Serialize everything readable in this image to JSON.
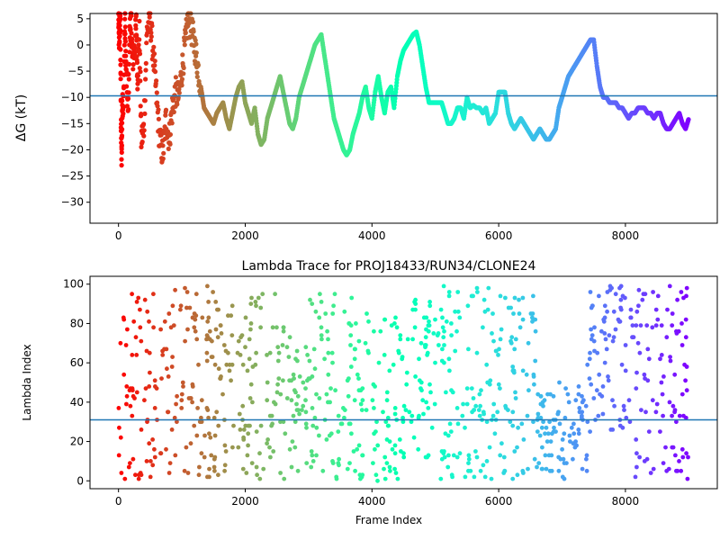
{
  "chart_data": [
    {
      "type": "scatter",
      "title": "",
      "xlabel": "",
      "ylabel": "ΔG (kT)",
      "xlim": [
        -450,
        9450
      ],
      "ylim": [
        -34,
        6
      ],
      "xticks": [
        0,
        2000,
        4000,
        6000,
        8000
      ],
      "xtick_labels": [
        "0",
        "2000",
        "4000",
        "6000",
        "8000"
      ],
      "yticks": [
        5,
        0,
        -5,
        -10,
        -15,
        -20,
        -25,
        -30
      ],
      "ytick_labels": [
        "5",
        "0",
        "−5",
        "−10",
        "−15",
        "−20",
        "−25",
        "−30"
      ],
      "hline": -9.7,
      "hline_color": "#1f77b4",
      "grid": false,
      "legend": "none",
      "colormap": "rainbow (red at frame 0 → violet at frame 9000)",
      "series": [
        {
          "points": [
            [
              0,
              5
            ],
            [
              10,
              0
            ],
            [
              20,
              4
            ],
            [
              30,
              3
            ],
            [
              40,
              -16
            ],
            [
              50,
              -21
            ],
            [
              60,
              -10
            ],
            [
              80,
              -12
            ],
            [
              100,
              5
            ],
            [
              120,
              -5
            ],
            [
              150,
              -13
            ],
            [
              180,
              3
            ],
            [
              200,
              5
            ],
            [
              220,
              -3
            ],
            [
              250,
              -1
            ],
            [
              280,
              4
            ],
            [
              300,
              -6
            ],
            [
              330,
              2
            ],
            [
              360,
              -18
            ],
            [
              400,
              -16
            ],
            [
              450,
              3
            ],
            [
              500,
              5
            ],
            [
              550,
              -2
            ],
            [
              600,
              -10
            ],
            [
              650,
              -18
            ],
            [
              700,
              -21
            ],
            [
              750,
              -14
            ],
            [
              800,
              -18
            ],
            [
              850,
              -12
            ],
            [
              900,
              -9
            ],
            [
              950,
              -10
            ],
            [
              1000,
              -5
            ],
            [
              1050,
              0
            ],
            [
              1100,
              5
            ],
            [
              1150,
              3
            ],
            [
              1200,
              0
            ],
            [
              1250,
              -4
            ],
            [
              1300,
              -8
            ],
            [
              1350,
              -12
            ],
            [
              1400,
              -13
            ],
            [
              1450,
              -14
            ],
            [
              1500,
              -15
            ],
            [
              1550,
              -13
            ],
            [
              1600,
              -12
            ],
            [
              1650,
              -11
            ],
            [
              1700,
              -14
            ],
            [
              1750,
              -16
            ],
            [
              1800,
              -13
            ],
            [
              1850,
              -10
            ],
            [
              1900,
              -8
            ],
            [
              1950,
              -7
            ],
            [
              2000,
              -11
            ],
            [
              2050,
              -13
            ],
            [
              2100,
              -15
            ],
            [
              2150,
              -12
            ],
            [
              2200,
              -17
            ],
            [
              2250,
              -19
            ],
            [
              2300,
              -18
            ],
            [
              2350,
              -14
            ],
            [
              2400,
              -12
            ],
            [
              2450,
              -10
            ],
            [
              2500,
              -8
            ],
            [
              2550,
              -6
            ],
            [
              2600,
              -9
            ],
            [
              2650,
              -12
            ],
            [
              2700,
              -15
            ],
            [
              2750,
              -16
            ],
            [
              2800,
              -14
            ],
            [
              2850,
              -10
            ],
            [
              2900,
              -8
            ],
            [
              2950,
              -6
            ],
            [
              3000,
              -4
            ],
            [
              3050,
              -2
            ],
            [
              3100,
              0
            ],
            [
              3150,
              1
            ],
            [
              3200,
              2
            ],
            [
              3250,
              -2
            ],
            [
              3300,
              -6
            ],
            [
              3350,
              -10
            ],
            [
              3400,
              -14
            ],
            [
              3450,
              -16
            ],
            [
              3500,
              -18
            ],
            [
              3550,
              -20
            ],
            [
              3600,
              -21
            ],
            [
              3650,
              -20
            ],
            [
              3700,
              -17
            ],
            [
              3750,
              -15
            ],
            [
              3800,
              -13
            ],
            [
              3850,
              -10
            ],
            [
              3900,
              -8
            ],
            [
              3950,
              -12
            ],
            [
              4000,
              -14
            ],
            [
              4050,
              -9
            ],
            [
              4100,
              -6
            ],
            [
              4150,
              -10
            ],
            [
              4200,
              -13
            ],
            [
              4250,
              -9
            ],
            [
              4300,
              -8
            ],
            [
              4350,
              -12
            ],
            [
              4400,
              -6
            ],
            [
              4450,
              -3
            ],
            [
              4500,
              -1
            ],
            [
              4550,
              0
            ],
            [
              4600,
              1
            ],
            [
              4650,
              2
            ],
            [
              4700,
              2.5
            ],
            [
              4750,
              0
            ],
            [
              4800,
              -4
            ],
            [
              4850,
              -8
            ],
            [
              4900,
              -11
            ],
            [
              4950,
              -11
            ],
            [
              5000,
              -11
            ],
            [
              5050,
              -11
            ],
            [
              5100,
              -11
            ],
            [
              5150,
              -13
            ],
            [
              5200,
              -15
            ],
            [
              5250,
              -15
            ],
            [
              5300,
              -14
            ],
            [
              5350,
              -12
            ],
            [
              5400,
              -12
            ],
            [
              5450,
              -14
            ],
            [
              5500,
              -10
            ],
            [
              5550,
              -12
            ],
            [
              5600,
              -11.5
            ],
            [
              5650,
              -12
            ],
            [
              5700,
              -12
            ],
            [
              5750,
              -13
            ],
            [
              5800,
              -12
            ],
            [
              5850,
              -15
            ],
            [
              5900,
              -14
            ],
            [
              5950,
              -13
            ],
            [
              6000,
              -9
            ],
            [
              6050,
              -9
            ],
            [
              6100,
              -9
            ],
            [
              6150,
              -13
            ],
            [
              6200,
              -15
            ],
            [
              6250,
              -16
            ],
            [
              6300,
              -15
            ],
            [
              6350,
              -14
            ],
            [
              6400,
              -15
            ],
            [
              6450,
              -16
            ],
            [
              6500,
              -17
            ],
            [
              6550,
              -18
            ],
            [
              6600,
              -17
            ],
            [
              6650,
              -16
            ],
            [
              6700,
              -17
            ],
            [
              6750,
              -18
            ],
            [
              6800,
              -18
            ],
            [
              6850,
              -17
            ],
            [
              6900,
              -16
            ],
            [
              6950,
              -12
            ],
            [
              7000,
              -10
            ],
            [
              7050,
              -8
            ],
            [
              7100,
              -6
            ],
            [
              7150,
              -5
            ],
            [
              7200,
              -4
            ],
            [
              7250,
              -3
            ],
            [
              7300,
              -2
            ],
            [
              7350,
              -1
            ],
            [
              7400,
              0
            ],
            [
              7450,
              1
            ],
            [
              7500,
              1
            ],
            [
              7550,
              -4
            ],
            [
              7600,
              -8
            ],
            [
              7650,
              -10
            ],
            [
              7700,
              -10
            ],
            [
              7750,
              -11
            ],
            [
              7800,
              -11
            ],
            [
              7850,
              -11
            ],
            [
              7900,
              -12
            ],
            [
              7950,
              -12
            ],
            [
              8000,
              -13
            ],
            [
              8050,
              -14
            ],
            [
              8100,
              -13
            ],
            [
              8150,
              -13
            ],
            [
              8200,
              -12
            ],
            [
              8250,
              -12
            ],
            [
              8300,
              -12
            ],
            [
              8350,
              -13
            ],
            [
              8400,
              -13
            ],
            [
              8450,
              -14
            ],
            [
              8500,
              -13
            ],
            [
              8550,
              -13
            ],
            [
              8600,
              -15
            ],
            [
              8650,
              -16
            ],
            [
              8700,
              -16
            ],
            [
              8750,
              -15
            ],
            [
              8800,
              -14
            ],
            [
              8850,
              -13
            ],
            [
              8900,
              -15
            ],
            [
              8950,
              -16
            ],
            [
              9000,
              -14
            ]
          ]
        }
      ]
    },
    {
      "type": "scatter",
      "title": "Lambda Trace for PROJ18433/RUN34/CLONE24",
      "xlabel": "Frame Index",
      "ylabel": "Lambda Index",
      "xlim": [
        -450,
        9450
      ],
      "ylim": [
        -4,
        104
      ],
      "xticks": [
        0,
        2000,
        4000,
        6000,
        8000
      ],
      "xtick_labels": [
        "0",
        "2000",
        "4000",
        "6000",
        "8000"
      ],
      "yticks": [
        0,
        20,
        40,
        60,
        80,
        100
      ],
      "ytick_labels": [
        "0",
        "20",
        "40",
        "60",
        "80",
        "100"
      ],
      "hline": 31,
      "hline_color": "#1f77b4",
      "grid": false,
      "legend": "none",
      "colormap": "rainbow (red at frame 0 → violet at frame 9000)",
      "series": [
        {
          "segments": [
            {
              "x_start": 0,
              "x_end": 600,
              "y_low": 0,
              "y_high": 99
            },
            {
              "x_start": 600,
              "x_end": 1500,
              "y_low": 1,
              "y_high": 99
            },
            {
              "x_start": 1500,
              "x_end": 2500,
              "y_low": 1,
              "y_high": 99
            },
            {
              "x_start": 2500,
              "x_end": 3000,
              "y_low": 1,
              "y_high": 80
            },
            {
              "x_start": 3000,
              "x_end": 3700,
              "y_low": 1,
              "y_high": 99
            },
            {
              "x_start": 3700,
              "x_end": 4500,
              "y_low": 0,
              "y_high": 85
            },
            {
              "x_start": 4500,
              "x_end": 5000,
              "y_low": 10,
              "y_high": 99
            },
            {
              "x_start": 5000,
              "x_end": 5800,
              "y_low": 1,
              "y_high": 99
            },
            {
              "x_start": 5800,
              "x_end": 6600,
              "y_low": 1,
              "y_high": 99
            },
            {
              "x_start": 6600,
              "x_end": 7400,
              "y_low": 0,
              "y_high": 50
            },
            {
              "x_start": 7400,
              "x_end": 8100,
              "y_low": 25,
              "y_high": 99
            },
            {
              "x_start": 8100,
              "x_end": 9000,
              "y_low": 1,
              "y_high": 99
            }
          ]
        }
      ]
    }
  ]
}
